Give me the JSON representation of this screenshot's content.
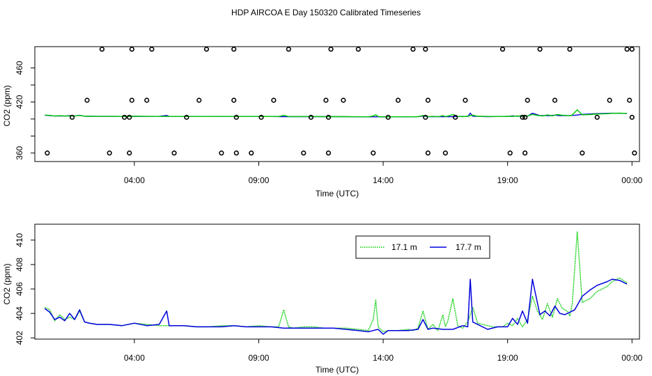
{
  "title": "HDP AIRCOA E  Day 150320  Calibrated Timeseries",
  "colors": {
    "green": "#00cc00",
    "blue": "#0000dd",
    "axis": "#000000"
  },
  "chart_data": [
    {
      "type": "scatter",
      "xlabel": "Time (UTC)",
      "ylabel": "CO2 (ppm)",
      "xlim": [
        0.0,
        24.3
      ],
      "ylim": [
        350,
        485
      ],
      "x_ticks": [
        4,
        9,
        14,
        19,
        24
      ],
      "x_tick_labels": [
        "04:00",
        "09:00",
        "14:00",
        "19:00",
        "00:00"
      ],
      "y_ticks": [
        360,
        380,
        400,
        420,
        440,
        460
      ],
      "y_tick_labels": [
        "360",
        "420",
        "460"
      ],
      "y_tick_label_values": [
        360,
        420,
        460
      ],
      "grid": false,
      "series": [
        {
          "marker": "open-circle",
          "x": [
            0.5,
            1.5,
            2.1,
            2.7,
            3.0,
            3.6,
            3.8,
            3.8,
            3.9,
            3.9,
            4.5,
            4.7,
            5.6,
            6.1,
            6.6,
            6.9,
            7.5,
            8.0,
            8.0,
            8.1,
            8.1,
            8.7,
            9.1,
            9.6,
            10.2,
            10.8,
            11.1,
            11.7,
            11.8,
            11.8,
            11.9,
            12.4,
            13.0,
            13.6,
            14.2,
            14.6,
            15.2,
            15.7,
            15.7,
            15.8,
            15.8,
            16.5,
            16.9,
            17.3,
            18.8,
            19.1,
            19.6,
            19.7,
            19.7,
            19.8,
            20.3,
            20.9,
            21.5,
            22.0,
            22.6,
            23.1,
            23.8,
            23.9,
            24.0,
            24.0,
            24.1
          ],
          "y": [
            360,
            402,
            422,
            482,
            360,
            402,
            402,
            360,
            422,
            482,
            422,
            482,
            360,
            402,
            422,
            482,
            360,
            482,
            422,
            402,
            360,
            360,
            402,
            422,
            482,
            360,
            402,
            422,
            360,
            402,
            482,
            422,
            482,
            360,
            402,
            422,
            482,
            482,
            402,
            422,
            360,
            360,
            402,
            422,
            482,
            360,
            402,
            360,
            402,
            422,
            482,
            422,
            482,
            360,
            402,
            422,
            482,
            422,
            402,
            482,
            360
          ]
        }
      ]
    },
    {
      "type": "line",
      "xlabel": "Time (UTC)",
      "ylabel": "CO2 (ppm)",
      "xlim": [
        0.0,
        24.3
      ],
      "ylim": [
        401.9,
        411.3
      ],
      "x_ticks": [
        4,
        9,
        14,
        19,
        24
      ],
      "x_tick_labels": [
        "04:00",
        "09:00",
        "14:00",
        "19:00",
        "00:00"
      ],
      "y_ticks": [
        402,
        404,
        406,
        408,
        410
      ],
      "y_tick_labels": [
        "402",
        "404",
        "406",
        "408",
        "410"
      ],
      "grid": false,
      "legend": "top-center",
      "series": [
        {
          "name": "17.1 m",
          "color": "#00cc00",
          "style": "dotted",
          "x": [
            0.4,
            0.6,
            0.8,
            1.0,
            1.2,
            1.4,
            1.6,
            1.8,
            2.0,
            2.2,
            2.5,
            3.0,
            3.5,
            4.0,
            4.5,
            5.0,
            5.5,
            6.0,
            6.5,
            7.0,
            7.5,
            8.0,
            8.5,
            9.0,
            9.5,
            9.8,
            10.0,
            10.2,
            10.4,
            10.8,
            11.2,
            11.6,
            12.0,
            12.5,
            13.0,
            13.4,
            13.6,
            13.7,
            13.8,
            14.0,
            14.2,
            14.6,
            15.0,
            15.2,
            15.4,
            15.6,
            15.8,
            16.0,
            16.2,
            16.4,
            16.5,
            16.6,
            16.8,
            17.0,
            17.2,
            17.4,
            17.6,
            17.8,
            18.0,
            18.4,
            18.8,
            19.0,
            19.2,
            19.4,
            19.6,
            19.8,
            20.0,
            20.2,
            20.4,
            20.6,
            20.8,
            21.0,
            21.2,
            21.4,
            21.5,
            21.6,
            21.8,
            22.0,
            22.3,
            22.6,
            23.0,
            23.2,
            23.5,
            23.8
          ],
          "values": [
            404.5,
            404.3,
            403.4,
            403.9,
            403.5,
            403.7,
            403.5,
            404.2,
            403.3,
            403.2,
            403.1,
            403.1,
            403.0,
            403.2,
            403.1,
            403.0,
            403.0,
            403.0,
            402.9,
            402.9,
            403.0,
            403.0,
            402.9,
            403.0,
            402.9,
            402.9,
            404.3,
            402.9,
            402.8,
            402.9,
            402.9,
            402.8,
            402.8,
            402.8,
            402.7,
            402.6,
            403.5,
            405.1,
            402.9,
            402.5,
            402.6,
            402.6,
            402.7,
            402.6,
            402.8,
            404.2,
            402.7,
            403.1,
            402.6,
            403.9,
            402.9,
            403.4,
            405.2,
            403.0,
            402.8,
            403.3,
            404.5,
            403.2,
            403.1,
            402.9,
            402.9,
            403.2,
            403.0,
            403.6,
            402.9,
            403.5,
            405.4,
            404.2,
            403.5,
            404.8,
            403.7,
            405.2,
            404.4,
            404.2,
            403.8,
            404.8,
            410.7,
            404.9,
            405.2,
            405.8,
            406.2,
            406.6,
            406.9,
            406.5
          ]
        },
        {
          "name": "17.7 m",
          "color": "#0000dd",
          "style": "solid",
          "x": [
            0.4,
            0.6,
            0.8,
            1.0,
            1.2,
            1.4,
            1.6,
            1.8,
            2.0,
            2.2,
            2.5,
            3.0,
            3.5,
            4.0,
            4.5,
            5.0,
            5.3,
            5.4,
            5.5,
            6.0,
            6.5,
            7.0,
            7.5,
            8.0,
            8.5,
            9.0,
            9.5,
            10.0,
            10.5,
            11.0,
            11.5,
            12.0,
            12.5,
            13.0,
            13.4,
            13.6,
            13.8,
            14.0,
            14.2,
            14.6,
            15.0,
            15.4,
            15.6,
            15.8,
            16.0,
            16.4,
            16.8,
            17.2,
            17.4,
            17.5,
            17.6,
            17.8,
            18.2,
            18.6,
            19.0,
            19.2,
            19.4,
            19.6,
            19.8,
            20.0,
            20.1,
            20.3,
            20.5,
            20.7,
            20.9,
            21.1,
            21.3,
            21.5,
            21.7,
            22.0,
            22.3,
            22.6,
            23.0,
            23.2,
            23.5,
            23.8
          ],
          "values": [
            404.4,
            404.1,
            403.5,
            403.7,
            403.4,
            404.0,
            403.5,
            404.3,
            403.3,
            403.2,
            403.1,
            403.1,
            403.0,
            403.2,
            403.0,
            403.1,
            404.2,
            403.0,
            403.0,
            403.0,
            402.9,
            402.9,
            402.9,
            403.0,
            402.9,
            402.9,
            402.9,
            402.8,
            402.8,
            402.8,
            402.8,
            402.8,
            402.7,
            402.6,
            402.5,
            402.6,
            402.7,
            402.3,
            402.6,
            402.6,
            402.6,
            402.7,
            403.5,
            402.7,
            402.8,
            402.7,
            402.7,
            403.0,
            402.9,
            406.8,
            403.3,
            403.1,
            402.7,
            402.9,
            402.9,
            403.6,
            403.1,
            404.2,
            403.2,
            406.8,
            405.8,
            403.9,
            404.2,
            403.8,
            404.6,
            404.0,
            403.9,
            404.1,
            404.3,
            405.4,
            405.9,
            406.3,
            406.6,
            406.8,
            406.7,
            406.4
          ]
        }
      ]
    }
  ]
}
